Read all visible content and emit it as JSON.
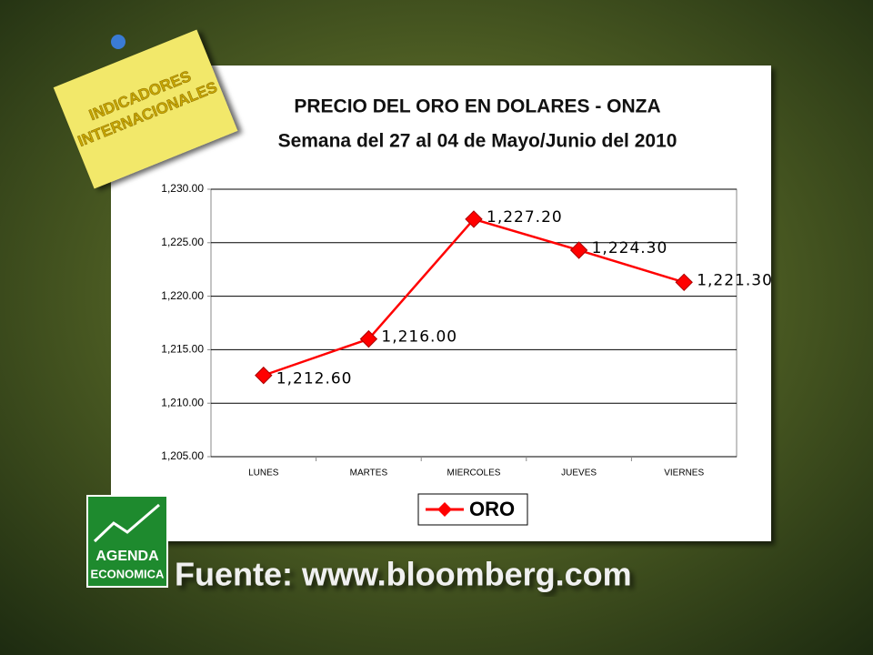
{
  "note": {
    "line1": "INDICADORES",
    "line2": "INTERNACIONALES"
  },
  "logo": {
    "line1": "AGENDA",
    "line2": "ECONOMICA"
  },
  "footer": "Fuente: www.bloomberg.com",
  "chart_data": {
    "type": "line",
    "title": "PRECIO DEL ORO EN DOLARES - ONZA",
    "subtitle": "Semana del 27 al 04 de Mayo/Junio del 2010",
    "categories": [
      "LUNES",
      "MARTES",
      "MIERCOLES",
      "JUEVES",
      "VIERNES"
    ],
    "series": [
      {
        "name": "ORO",
        "color": "#ff0000",
        "values": [
          1212.6,
          1216.0,
          1227.2,
          1224.3,
          1221.3
        ],
        "value_labels": [
          "1,212.60",
          "1,216.00",
          "1,227.20",
          "1,224.30",
          "1,221.30"
        ]
      }
    ],
    "ylim": [
      1205,
      1230
    ],
    "yticks": [
      {
        "value": 1205,
        "label": "1,205.00"
      },
      {
        "value": 1210,
        "label": "1,210.00"
      },
      {
        "value": 1215,
        "label": "1,215.00"
      },
      {
        "value": 1220,
        "label": "1,220.00"
      },
      {
        "value": 1225,
        "label": "1,225.00"
      },
      {
        "value": 1230,
        "label": "1,230.00"
      }
    ],
    "grid": true,
    "legend": "bottom"
  }
}
